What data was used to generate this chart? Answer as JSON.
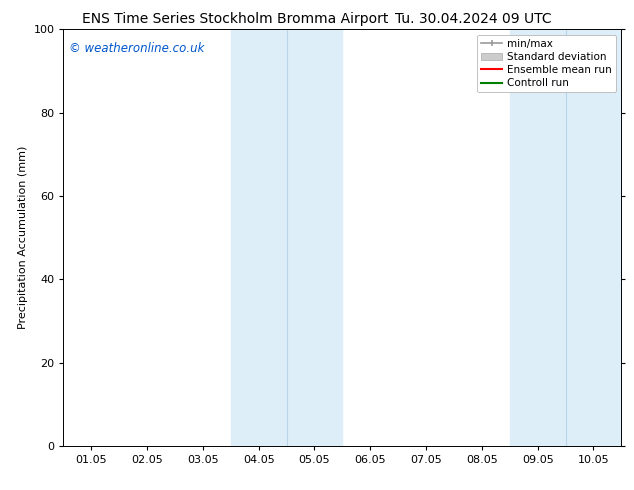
{
  "title_left": "ENS Time Series Stockholm Bromma Airport",
  "title_right": "Tu. 30.04.2024 09 UTC",
  "ylabel": "Precipitation Accumulation (mm)",
  "ylim": [
    0,
    100
  ],
  "yticks": [
    0,
    20,
    40,
    60,
    80,
    100
  ],
  "xtick_labels": [
    "01.05",
    "02.05",
    "03.05",
    "04.05",
    "05.05",
    "06.05",
    "07.05",
    "08.05",
    "09.05",
    "10.05"
  ],
  "shaded_regions": [
    {
      "xstart": 3.5,
      "xend": 4.5,
      "color": "#ddeef8"
    },
    {
      "xstart": 4.5,
      "xend": 5.5,
      "color": "#ddeef8"
    },
    {
      "xstart": 8.5,
      "xend": 9.5,
      "color": "#ddeef8"
    },
    {
      "xstart": 9.5,
      "xend": 10.5,
      "color": "#ddeef8"
    }
  ],
  "watermark_text": "© weatheronline.co.uk",
  "watermark_color": "#0055cc",
  "legend_entries": [
    {
      "label": "min/max",
      "color": "#999999",
      "lw": 1.2
    },
    {
      "label": "Standard deviation",
      "color": "#cccccc",
      "lw": 6
    },
    {
      "label": "Ensemble mean run",
      "color": "#ff0000",
      "lw": 1.5
    },
    {
      "label": "Controll run",
      "color": "#008000",
      "lw": 1.5
    }
  ],
  "bg_color": "#ffffff",
  "plot_bg": "#ffffff",
  "title_fontsize": 10,
  "tick_label_fontsize": 8,
  "ylabel_fontsize": 8,
  "legend_fontsize": 7.5,
  "watermark_fontsize": 8.5
}
